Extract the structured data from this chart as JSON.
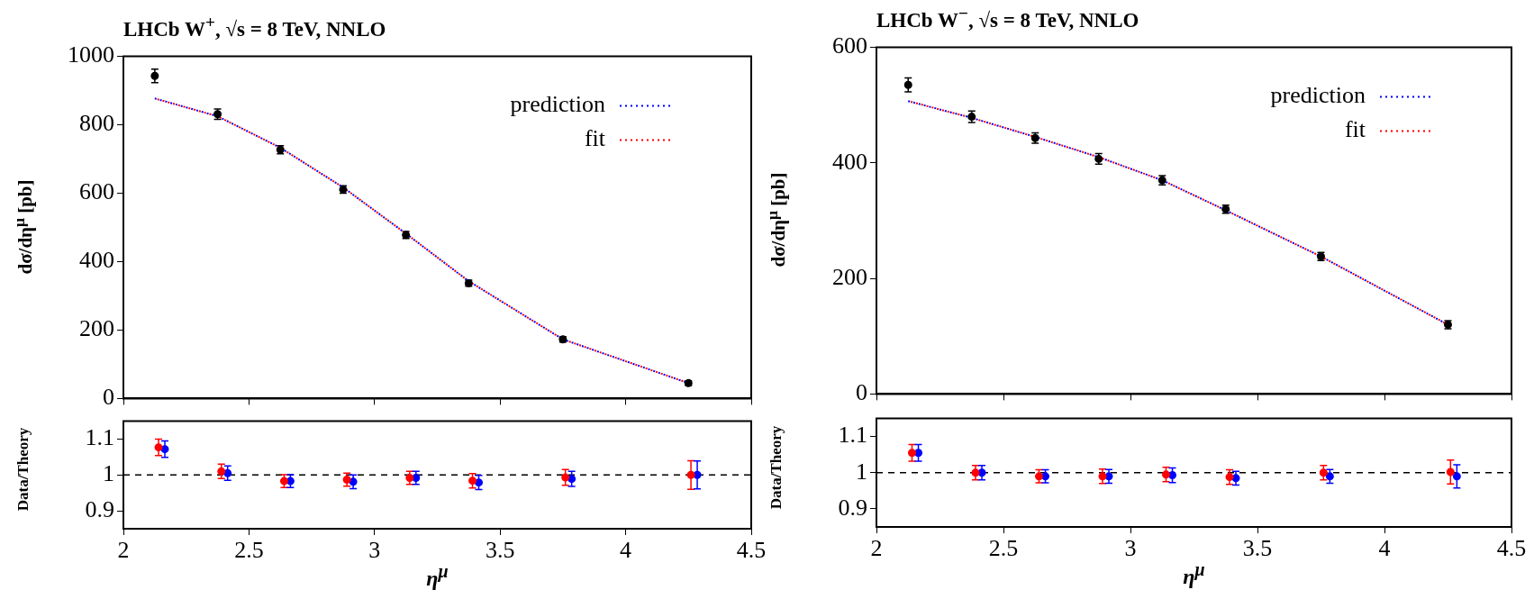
{
  "chart_data": [
    {
      "type": "scatter",
      "title": "LHCb W$^{+}$, √s = 8 TeV, NNLO",
      "ylabel": "dσ/dη$^{μ}$ [pb]",
      "x": [
        2.125,
        2.375,
        2.625,
        2.875,
        3.125,
        3.375,
        3.75,
        4.25
      ],
      "xlim": [
        2,
        4.5
      ],
      "xticks": [
        2,
        2.5,
        3,
        3.5,
        4,
        4.5
      ],
      "ylim": [
        0,
        1000
      ],
      "yticks": [
        0,
        200,
        400,
        600,
        800,
        1000
      ],
      "tick_labels": "y",
      "legend": "top right",
      "series": [
        {
          "type": "scatter",
          "color": "#000000",
          "marker": "circle",
          "values": [
            943,
            831,
            727,
            611,
            478,
            337,
            173,
            45
          ],
          "errors": [
            20,
            15,
            12,
            11,
            10,
            9,
            8,
            7
          ]
        },
        {
          "type": "line",
          "name": "prediction",
          "color": "#0000ff",
          "line_style": "dotted",
          "values": [
            877,
            825,
            733,
            617,
            482,
            343,
            173,
            45
          ]
        },
        {
          "type": "line",
          "name": "fit",
          "color": "#ff0000",
          "line_style": "dotted",
          "values": [
            877,
            825,
            733,
            617,
            482,
            343,
            173,
            45
          ]
        }
      ]
    },
    {
      "type": "scatter",
      "ylabel": "Data/Theory",
      "xlabel": "η$^{μ}$",
      "xlim": [
        2,
        4.5
      ],
      "xticks": [
        2,
        2.5,
        3,
        3.5,
        4,
        4.5
      ],
      "ylim": [
        0.85,
        1.15
      ],
      "yticks": [
        0.9,
        1,
        1.1
      ],
      "ref_lines": [
        {
          "axis": "y",
          "value": 1,
          "color": "#000000",
          "line_style": "dashed"
        }
      ],
      "series": [
        {
          "color": "#ff0000",
          "marker": "circle",
          "x": [
            2.14,
            2.39,
            2.64,
            2.89,
            3.14,
            3.39,
            3.76,
            4.26
          ],
          "values": [
            1.077,
            1.01,
            0.983,
            0.987,
            0.992,
            0.984,
            0.993,
            1.0
          ],
          "errors": [
            0.023,
            0.02,
            0.018,
            0.018,
            0.018,
            0.02,
            0.022,
            0.04
          ]
        },
        {
          "color": "#0000ff",
          "marker": "circle",
          "x": [
            2.165,
            2.415,
            2.665,
            2.915,
            3.165,
            3.415,
            3.785,
            4.285
          ],
          "values": [
            1.072,
            1.005,
            0.983,
            0.981,
            0.992,
            0.979,
            0.989,
            1.0
          ],
          "errors": [
            0.023,
            0.02,
            0.018,
            0.019,
            0.018,
            0.02,
            0.021,
            0.039
          ]
        }
      ]
    },
    {
      "type": "scatter",
      "title": "LHCb W$^{−}$, √s = 8 TeV, NNLO",
      "ylabel": "dσ/dη$^{μ}$ [pb]",
      "x": [
        2.125,
        2.375,
        2.625,
        2.875,
        3.125,
        3.375,
        3.75,
        4.25
      ],
      "xlim": [
        2,
        4.5
      ],
      "xticks": [
        2,
        2.5,
        3,
        3.5,
        4,
        4.5
      ],
      "ylim": [
        0,
        600
      ],
      "yticks": [
        0,
        200,
        400,
        600
      ],
      "tick_labels": "y",
      "legend": "top right",
      "series": [
        {
          "type": "scatter",
          "color": "#000000",
          "marker": "circle",
          "values": [
            535,
            480,
            443,
            407,
            370,
            320,
            238,
            120
          ],
          "errors": [
            12,
            10,
            9,
            9,
            8,
            7,
            7,
            7
          ]
        },
        {
          "type": "line",
          "name": "prediction",
          "color": "#0000ff",
          "line_style": "dotted",
          "values": [
            507,
            478,
            445,
            410,
            370,
            318,
            238,
            120
          ]
        },
        {
          "type": "line",
          "name": "fit",
          "color": "#ff0000",
          "line_style": "dotted",
          "values": [
            507,
            478,
            445,
            410,
            370,
            318,
            238,
            120
          ]
        }
      ]
    },
    {
      "type": "scatter",
      "ylabel": "Data/Theory",
      "xlabel": "η$^{μ}$",
      "xlim": [
        2,
        4.5
      ],
      "xticks": [
        2,
        2.5,
        3,
        3.5,
        4,
        4.5
      ],
      "ylim": [
        0.85,
        1.15
      ],
      "yticks": [
        0.9,
        1,
        1.1
      ],
      "ref_lines": [
        {
          "axis": "y",
          "value": 1,
          "color": "#000000",
          "line_style": "dashed"
        }
      ],
      "series": [
        {
          "color": "#ff0000",
          "marker": "circle",
          "x": [
            2.14,
            2.39,
            2.64,
            2.89,
            3.14,
            3.39,
            3.76,
            4.26
          ],
          "values": [
            1.055,
            1.0,
            0.99,
            0.99,
            0.995,
            0.988,
            1.0,
            1.002
          ],
          "errors": [
            0.023,
            0.02,
            0.018,
            0.02,
            0.02,
            0.02,
            0.02,
            0.033
          ]
        },
        {
          "color": "#0000ff",
          "marker": "circle",
          "x": [
            2.165,
            2.415,
            2.665,
            2.915,
            3.165,
            3.415,
            3.785,
            4.285
          ],
          "values": [
            1.055,
            1.0,
            0.99,
            0.99,
            0.993,
            0.985,
            0.99,
            0.99
          ],
          "errors": [
            0.023,
            0.02,
            0.018,
            0.019,
            0.02,
            0.019,
            0.019,
            0.032
          ]
        }
      ]
    }
  ]
}
